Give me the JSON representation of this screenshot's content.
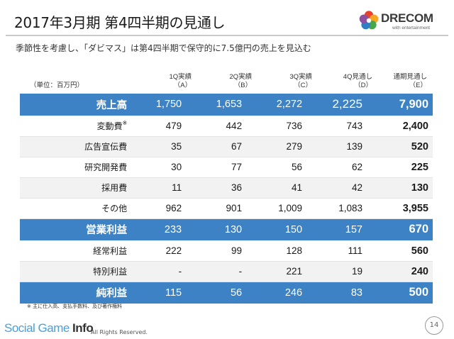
{
  "title": "2017年3月期 第4四半期の見通し",
  "subtitle": "季節性を考慮し、「ダビマス」は第4四半期で保守的に7.5億円の売上を見込む",
  "logo": {
    "text": "DRECOM",
    "sub": "with entertainment",
    "colors": [
      "#e8412c",
      "#f7a823",
      "#46a84a",
      "#2e7ec3",
      "#8f4fa0"
    ]
  },
  "table": {
    "unit": "（単位：百万円）",
    "columns": [
      {
        "line1": "1Q実績",
        "line2": "（A）"
      },
      {
        "line1": "2Q実績",
        "line2": "（B）"
      },
      {
        "line1": "3Q実績",
        "line2": "（C）"
      },
      {
        "line1": "4Q見通し",
        "line2": "（D）"
      },
      {
        "line1": "通期見通し",
        "line2": "（E）"
      }
    ],
    "rows": [
      {
        "label": "売上高",
        "note": "",
        "values": [
          "1,750",
          "1,653",
          "2,272",
          "2,225",
          "7,900"
        ],
        "highlight": true
      },
      {
        "label": "変動費",
        "note": "※",
        "values": [
          "479",
          "442",
          "736",
          "743",
          "2,400"
        ],
        "highlight": false
      },
      {
        "label": "広告宣伝費",
        "note": "",
        "values": [
          "35",
          "67",
          "279",
          "139",
          "520"
        ],
        "highlight": false
      },
      {
        "label": "研究開発費",
        "note": "",
        "values": [
          "30",
          "77",
          "56",
          "62",
          "225"
        ],
        "highlight": false
      },
      {
        "label": "採用費",
        "note": "",
        "values": [
          "11",
          "36",
          "41",
          "42",
          "130"
        ],
        "highlight": false
      },
      {
        "label": "その他",
        "note": "",
        "values": [
          "962",
          "901",
          "1,009",
          "1,083",
          "3,955"
        ],
        "highlight": false
      },
      {
        "label": "営業利益",
        "note": "",
        "values": [
          "233",
          "130",
          "150",
          "157",
          "670"
        ],
        "highlight": true
      },
      {
        "label": "経常利益",
        "note": "",
        "values": [
          "222",
          "99",
          "128",
          "111",
          "560"
        ],
        "highlight": false
      },
      {
        "label": "特別利益",
        "note": "",
        "values": [
          "-",
          "-",
          "221",
          "19",
          "240"
        ],
        "highlight": false
      },
      {
        "label": "純利益",
        "note": "",
        "values": [
          "115",
          "56",
          "246",
          "83",
          "500"
        ],
        "highlight": true
      }
    ]
  },
  "footnote": "※ 主に仕入高、支払手数料、及び著作権料",
  "watermark": {
    "part1": "Social Game ",
    "part2": "Info"
  },
  "copyright": "All Rights Reserved.",
  "page_number": "14",
  "colors": {
    "highlight_row": "#3c82c4",
    "alt_row": "#f2f2f2",
    "watermark": "#4aa0d8"
  }
}
